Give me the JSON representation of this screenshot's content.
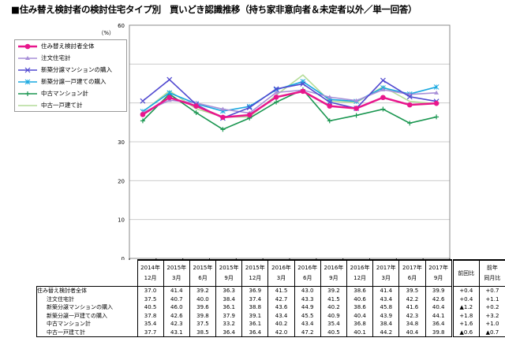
{
  "title": "■住み替え検討者の検討住宅タイプ別　買いどき認識推移（持ち家非意向者＆未定者以外／単一回答）",
  "chart_data": {
    "type": "line",
    "title": "住み替え検討者の検討住宅タイプ別　買いどき認識推移（持ち家非意向者＆未定者以外／単一回答）",
    "ylabel": "（%）",
    "ylim": [
      0,
      60
    ],
    "yticks": [
      0,
      10,
      20,
      30,
      40,
      50,
      60
    ],
    "grid": true,
    "legend_position": "left",
    "categories": [
      "2014年12月",
      "2015年3月",
      "2015年6月",
      "2015年9月",
      "2015年12月",
      "2016年3月",
      "2016年6月",
      "2016年9月",
      "2016年12月",
      "2017年3月",
      "2017年6月",
      "2017年9月"
    ],
    "categories_year": [
      "2014年",
      "2015年",
      "2015年",
      "2015年",
      "2015年",
      "2016年",
      "2016年",
      "2016年",
      "2016年",
      "2017年",
      "2017年",
      "2017年"
    ],
    "categories_month": [
      "12月",
      "3月",
      "6月",
      "9月",
      "12月",
      "3月",
      "6月",
      "9月",
      "12月",
      "3月",
      "6月",
      "9月"
    ],
    "series": [
      {
        "name": "住み替え検討者全体",
        "color": "#e8168c",
        "marker": "circle",
        "values": [
          37.0,
          41.4,
          39.2,
          36.3,
          36.9,
          41.5,
          43.0,
          39.2,
          38.6,
          41.4,
          39.5,
          39.9
        ],
        "vs_prev": "+0.4",
        "vs_year": "+0.7"
      },
      {
        "name": "注文住宅計",
        "color": "#a890d8",
        "marker": "triangle",
        "values": [
          37.5,
          40.7,
          40.0,
          38.4,
          37.4,
          42.7,
          43.3,
          41.5,
          40.6,
          43.4,
          42.2,
          42.6
        ],
        "vs_prev": "+0.4",
        "vs_year": "+1.1"
      },
      {
        "name": "新築分譲マンションの購入",
        "color": "#5048d0",
        "marker": "x",
        "values": [
          40.5,
          46.0,
          39.6,
          36.1,
          38.8,
          43.6,
          44.9,
          40.2,
          38.6,
          45.8,
          41.6,
          40.4
        ],
        "vs_prev": "▲1.2",
        "vs_year": "+0.2"
      },
      {
        "name": "新築分譲一戸建ての購入",
        "color": "#18a8e0",
        "marker": "star",
        "values": [
          37.8,
          42.6,
          39.8,
          37.9,
          39.1,
          43.4,
          45.5,
          40.9,
          40.4,
          43.9,
          42.3,
          44.1
        ],
        "vs_prev": "+1.8",
        "vs_year": "+3.2"
      },
      {
        "name": "中古マンション計",
        "color": "#1a9650",
        "marker": "plus",
        "values": [
          35.4,
          42.3,
          37.5,
          33.2,
          36.1,
          40.2,
          43.4,
          35.4,
          36.8,
          38.4,
          34.8,
          36.4
        ],
        "vs_prev": "+1.6",
        "vs_year": "+1.0"
      },
      {
        "name": "中古一戸建て計",
        "color": "#b4dc98",
        "marker": "none",
        "values": [
          37.7,
          43.1,
          38.5,
          36.4,
          36.4,
          42.0,
          47.2,
          40.5,
          40.1,
          44.2,
          40.4,
          39.8
        ],
        "vs_prev": "▲0.6",
        "vs_year": "▲0.7"
      }
    ]
  },
  "table": {
    "col_prev": "前回比",
    "col_year_1": "前年",
    "col_year_2": "同月比"
  }
}
